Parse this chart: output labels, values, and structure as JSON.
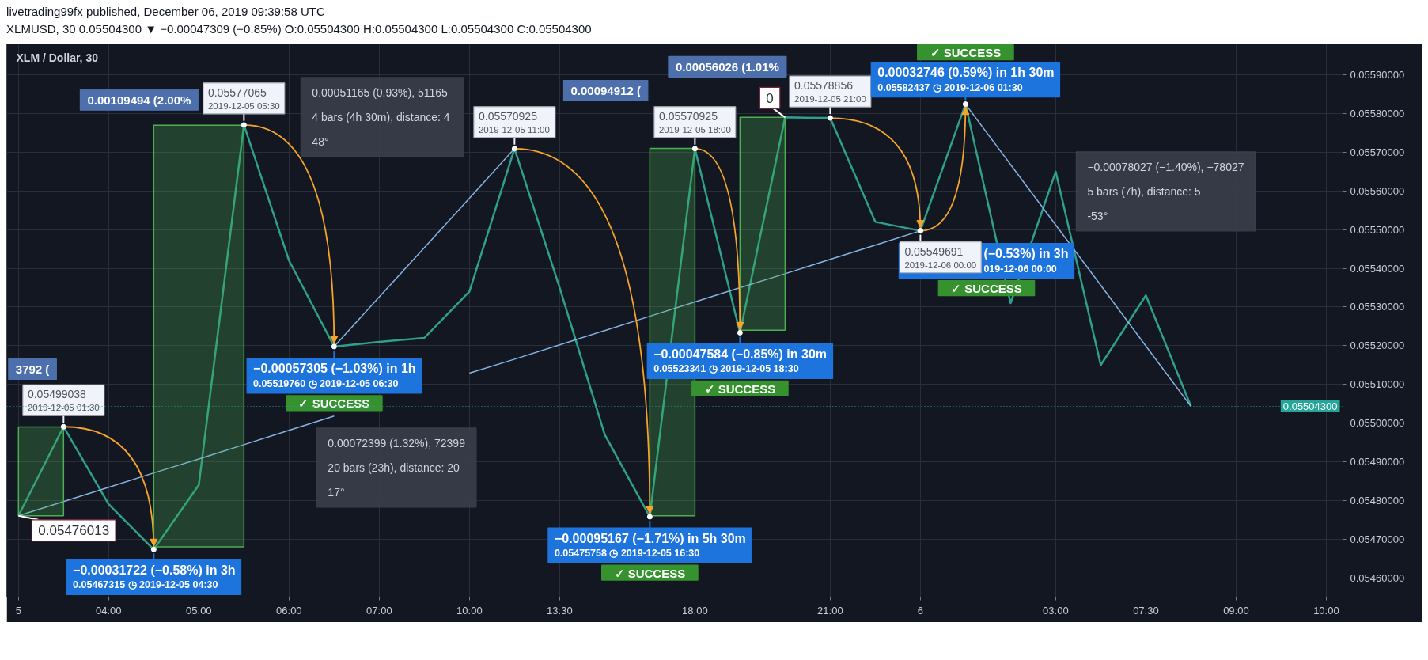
{
  "chart_data": {
    "type": "line",
    "title": "XLM / Dollar, 30",
    "subtitle": "XLMUSD, 30 0.05504300 ▼ −0.00047309 (−0.85%) O:0.05504300 H:0.05504300 L:0.05504300 C:0.05504300",
    "categories": [
      "5",
      null,
      "04:00",
      null,
      "05:00",
      null,
      "06:00",
      null,
      "07:00",
      null,
      "10:00",
      null,
      "13:30",
      null,
      null,
      "18:00",
      null,
      null,
      "21:00",
      null,
      "6",
      null,
      null,
      "03:00",
      null,
      "07:30",
      null,
      "09:00",
      null,
      "10:00"
    ],
    "series": [
      {
        "color": "#2ea08c",
        "values": [
          0.05476013,
          0.05499038,
          0.05479,
          0.05467315,
          0.05484,
          0.05577065,
          0.05542,
          0.0551976,
          0.05521,
          0.05522,
          0.05534,
          0.05570925,
          0.05535,
          0.05497,
          0.05475758,
          0.05570925,
          0.05523341,
          0.05579,
          0.05578856,
          0.05552,
          0.05549691,
          0.05582437,
          0.05531,
          0.05565,
          0.05515,
          0.05533,
          0.055043,
          null,
          null,
          null
        ]
      },
      {
        "type": "line",
        "color": "#86b3e3",
        "values": [
          0.05476013,
          0.054797,
          0.054834,
          0.054871,
          0.054907,
          0.054944,
          0.054981,
          0.055018,
          null,
          null,
          0.055129,
          0.055165,
          0.055202,
          0.055239,
          0.055276,
          0.055313,
          0.05535,
          0.055386,
          0.055423,
          0.05546,
          0.05549691,
          null,
          null,
          null,
          null,
          null,
          null,
          null,
          null,
          null
        ]
      },
      {
        "type": "line",
        "color": "#86b3e3",
        "values": [
          null,
          null,
          null,
          null,
          null,
          null,
          null,
          0.0551976,
          0.055326,
          0.055453,
          0.055581,
          0.05570925,
          null,
          null,
          null,
          null,
          null,
          null,
          null,
          null,
          null,
          null,
          null,
          null,
          null,
          null,
          null,
          null,
          null,
          null
        ]
      },
      {
        "type": "line",
        "color": "#86b3e3",
        "values": [
          null,
          null,
          null,
          null,
          null,
          null,
          null,
          null,
          null,
          null,
          null,
          null,
          null,
          null,
          null,
          null,
          null,
          null,
          null,
          null,
          null,
          0.05582437,
          0.055668,
          0.055512,
          0.055356,
          0.055199,
          0.055043,
          null,
          null,
          null
        ]
      },
      {
        "type": "line",
        "color": "#4caf50",
        "values": [
          null,
          null,
          null,
          null,
          null,
          null,
          null,
          null,
          null,
          null,
          null,
          null,
          null,
          null,
          null,
          null,
          null,
          null,
          null,
          null,
          null,
          null,
          null,
          null,
          null,
          null,
          null,
          null,
          null,
          null
        ],
        "lower": [
          0.05476,
          0.05476,
          null,
          null,
          null,
          null,
          null,
          null,
          null,
          null,
          null,
          null,
          null,
          null,
          null,
          null,
          null,
          null,
          null,
          null,
          null,
          null,
          null,
          null,
          null,
          null,
          null,
          null,
          null,
          null
        ],
        "upper": [
          0.05499,
          0.05499,
          null,
          null,
          null,
          null,
          null,
          null,
          null,
          null,
          null,
          null,
          null,
          null,
          null,
          null,
          null,
          null,
          null,
          null,
          null,
          null,
          null,
          null,
          null,
          null,
          null,
          null,
          null,
          null
        ]
      },
      {
        "type": "line",
        "color": "#4caf50",
        "values": [
          null,
          null,
          null,
          null,
          null,
          null,
          null,
          null,
          null,
          null,
          null,
          null,
          null,
          null,
          null,
          null,
          null,
          null,
          null,
          null,
          null,
          null,
          null,
          null,
          null,
          null,
          null,
          null,
          null,
          null
        ],
        "lower": [
          null,
          null,
          null,
          0.05468,
          0.05468,
          0.05468,
          null,
          null,
          null,
          null,
          null,
          null,
          null,
          null,
          null,
          null,
          null,
          null,
          null,
          null,
          null,
          null,
          null,
          null,
          null,
          null,
          null,
          null,
          null,
          null
        ],
        "upper": [
          null,
          null,
          null,
          0.05577,
          0.05577,
          0.05577,
          null,
          null,
          null,
          null,
          null,
          null,
          null,
          null,
          null,
          null,
          null,
          null,
          null,
          null,
          null,
          null,
          null,
          null,
          null,
          null,
          null,
          null,
          null,
          null
        ]
      },
      {
        "type": "line",
        "color": "#4caf50",
        "values": [
          null,
          null,
          null,
          null,
          null,
          null,
          null,
          null,
          null,
          null,
          null,
          null,
          null,
          null,
          null,
          null,
          null,
          null,
          null,
          null,
          null,
          null,
          null,
          null,
          null,
          null,
          null,
          null,
          null,
          null
        ],
        "lower": [
          null,
          null,
          null,
          null,
          null,
          null,
          null,
          null,
          null,
          null,
          null,
          null,
          null,
          null,
          0.05476,
          0.05476,
          null,
          null,
          null,
          null,
          null,
          null,
          null,
          null,
          null,
          null,
          null,
          null,
          null,
          null
        ],
        "upper": [
          null,
          null,
          null,
          null,
          null,
          null,
          null,
          null,
          null,
          null,
          null,
          null,
          null,
          null,
          0.05571,
          0.05571,
          null,
          null,
          null,
          null,
          null,
          null,
          null,
          null,
          null,
          null,
          null,
          null,
          null,
          null
        ]
      },
      {
        "type": "line",
        "color": "#4caf50",
        "values": [
          null,
          null,
          null,
          null,
          null,
          null,
          null,
          null,
          null,
          null,
          null,
          null,
          null,
          null,
          null,
          null,
          null,
          null,
          null,
          null,
          null,
          null,
          null,
          null,
          null,
          null,
          null,
          null,
          null,
          null
        ],
        "lower": [
          null,
          null,
          null,
          null,
          null,
          null,
          null,
          null,
          null,
          null,
          null,
          null,
          null,
          null,
          null,
          null,
          0.05524,
          0.05524,
          null,
          null,
          null,
          null,
          null,
          null,
          null,
          null,
          null,
          null,
          null,
          null
        ],
        "upper": [
          null,
          null,
          null,
          null,
          null,
          null,
          null,
          null,
          null,
          null,
          null,
          null,
          null,
          null,
          null,
          null,
          0.05579,
          0.05579,
          null,
          null,
          null,
          null,
          null,
          null,
          null,
          null,
          null,
          null,
          null,
          null
        ]
      }
    ],
    "ylim": [
      0.05455,
      0.05598
    ],
    "yticks": [
      {
        "value": 0.0546,
        "label": "0.05460000"
      },
      {
        "value": 0.0547,
        "label": "0.05470000"
      },
      {
        "value": 0.0548,
        "label": "0.05480000"
      },
      {
        "value": 0.0549,
        "label": "0.05490000"
      },
      {
        "value": 0.055,
        "label": "0.05500000"
      },
      {
        "value": 0.0551,
        "label": "0.05510000"
      },
      {
        "value": 0.0552,
        "label": "0.05520000"
      },
      {
        "value": 0.0553,
        "label": "0.05530000"
      },
      {
        "value": 0.0554,
        "label": "0.05540000"
      },
      {
        "value": 0.0555,
        "label": "0.05550000"
      },
      {
        "value": 0.0556,
        "label": "0.05560000"
      },
      {
        "value": 0.0557,
        "label": "0.05570000"
      },
      {
        "value": 0.0558,
        "label": "0.05580000"
      },
      {
        "value": 0.0559,
        "label": "0.05590000"
      }
    ],
    "grid": true,
    "ref_lines": [
      {
        "axis": "y",
        "value": 0.055043,
        "label": "0.05504300",
        "color": "#26a69a",
        "line_style": "dotted"
      }
    ],
    "annotations": [
      "livetrading99fx published, December 06, 2019 09:39:58 UTC",
      {
        "text": "0.05476013",
        "x": "5",
        "y": 0.05476013
      },
      "3792 (",
      {
        "text": "0.05499038\n2019-12-05 01:30",
        "y": 0.05499038
      },
      "0.00109494 (2.00%",
      {
        "text": "0.05577065\n2019-12-05 05:30",
        "y": 0.05577065
      },
      {
        "text": "−0.00031722 (−0.58%) in 3h\n0.05467315 ◷ 2019-12-05 04:30",
        "y": 0.05467315
      },
      {
        "text": "0.05570925\n2019-12-05 11:00",
        "y": 0.05570925
      },
      {
        "text": "−0.00057305 (−1.03%) in 1h\n0.05519760 ◷ 2019-12-05 06:30",
        "y": 0.0551976
      },
      "✓ SUCCESS",
      "0.00051165 (0.93%), 51165\n4 bars (4h 30m), distance: 4\n48°",
      "0.00072399 (1.32%), 72399\n20 bars (23h), distance: 20\n17°",
      "0.00094912 (",
      {
        "text": "0.05570925\n2019-12-05 18:00",
        "y": 0.05570925
      },
      {
        "text": "−0.00095167 (−1.71%) in 5h 30m\n0.05475758 ◷ 2019-12-05 16:30",
        "y": 0.05475758
      },
      "✓ SUCCESS",
      "0.00056026 (1.01%",
      {
        "text": "0",
        "y": 0.05579
      },
      {
        "text": "0.05578856\n2019-12-05 21:00",
        "y": 0.05578856
      },
      {
        "text": "−0.00047584 (−0.85%) in 30m\n0.05523341 ◷ 2019-12-05 18:30",
        "y": 0.05523341
      },
      "✓ SUCCESS",
      "✓ SUCCESS",
      {
        "text": "0.00032746 (0.59%) in 1h 30m\n0.05582437 ◷ 2019-12-06 01:30",
        "y": 0.05582437
      },
      "(−0.53%) in 3h\n019-12-06 00:00",
      {
        "text": "0.05549691\n2019-12-06 00:00",
        "x": "6",
        "y": 0.05549691
      },
      "✓ SUCCESS",
      "−0.00078027 (−1.40%), −78027\n5 bars (7h), distance: 5\n-53°"
    ]
  }
}
